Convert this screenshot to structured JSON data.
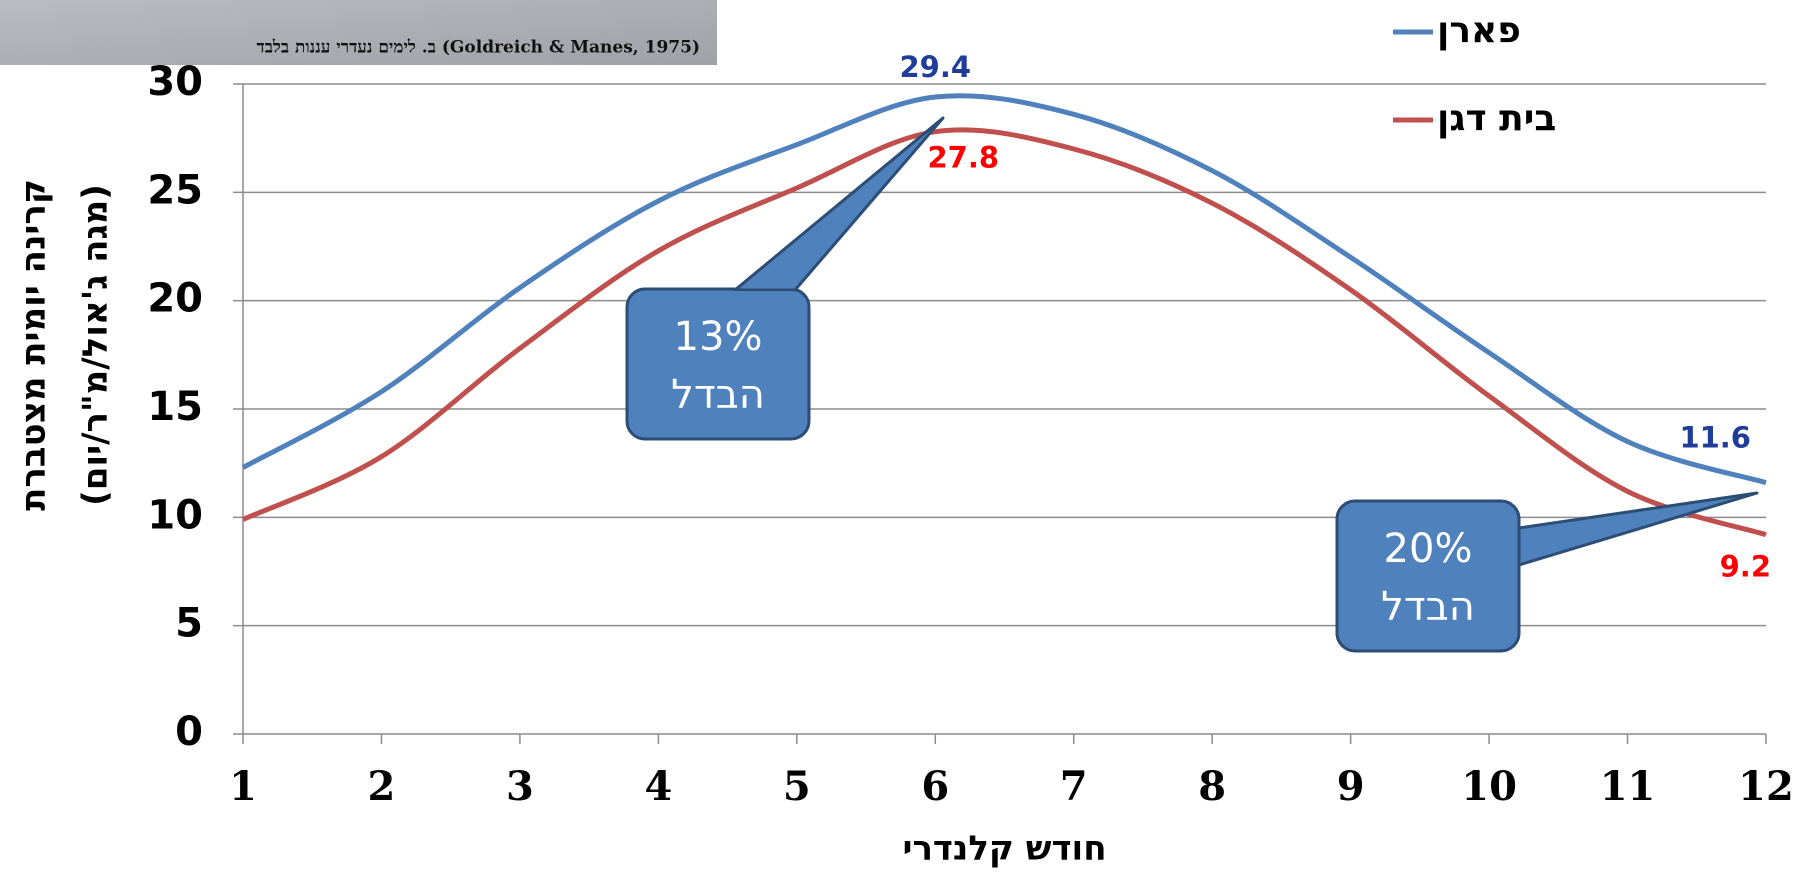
{
  "chart_data": {
    "type": "line",
    "source_note": "ב. לימים נעדרי עננות בלבד (Goldreich & Manes, 1975)",
    "x": [
      1,
      2,
      3,
      4,
      5,
      6,
      7,
      8,
      9,
      10,
      11,
      12
    ],
    "xticks": [
      1,
      2,
      3,
      4,
      5,
      6,
      7,
      8,
      9,
      10,
      11,
      12
    ],
    "xlim": [
      1,
      12
    ],
    "ylim": [
      0,
      30
    ],
    "yticks": [
      0,
      5,
      10,
      15,
      20,
      25,
      30
    ],
    "grid": true,
    "x_label": "חודש קלנדרי",
    "y_label": [
      "קרינה יומית מצטברת",
      "(מגה ג'אול/מ\"ר/יום)"
    ],
    "legend": "top-right",
    "series": [
      {
        "name": "פארן",
        "color": "#4f81bd",
        "label_color": "#1f3d99",
        "values": [
          12.3,
          15.8,
          20.6,
          24.6,
          27.2,
          29.4,
          28.6,
          26.0,
          22.0,
          17.6,
          13.5,
          11.6
        ]
      },
      {
        "name": "בית דגן",
        "color": "#c0504d",
        "label_color": "#ff0000",
        "values": [
          9.9,
          12.8,
          17.8,
          22.3,
          25.2,
          27.8,
          27.0,
          24.5,
          20.5,
          15.6,
          11.2,
          9.2
        ]
      }
    ],
    "annotations": [
      {
        "lines": [
          "13%",
          "הבדל"
        ]
      },
      {
        "lines": [
          "20%",
          "הבדל"
        ]
      }
    ]
  }
}
